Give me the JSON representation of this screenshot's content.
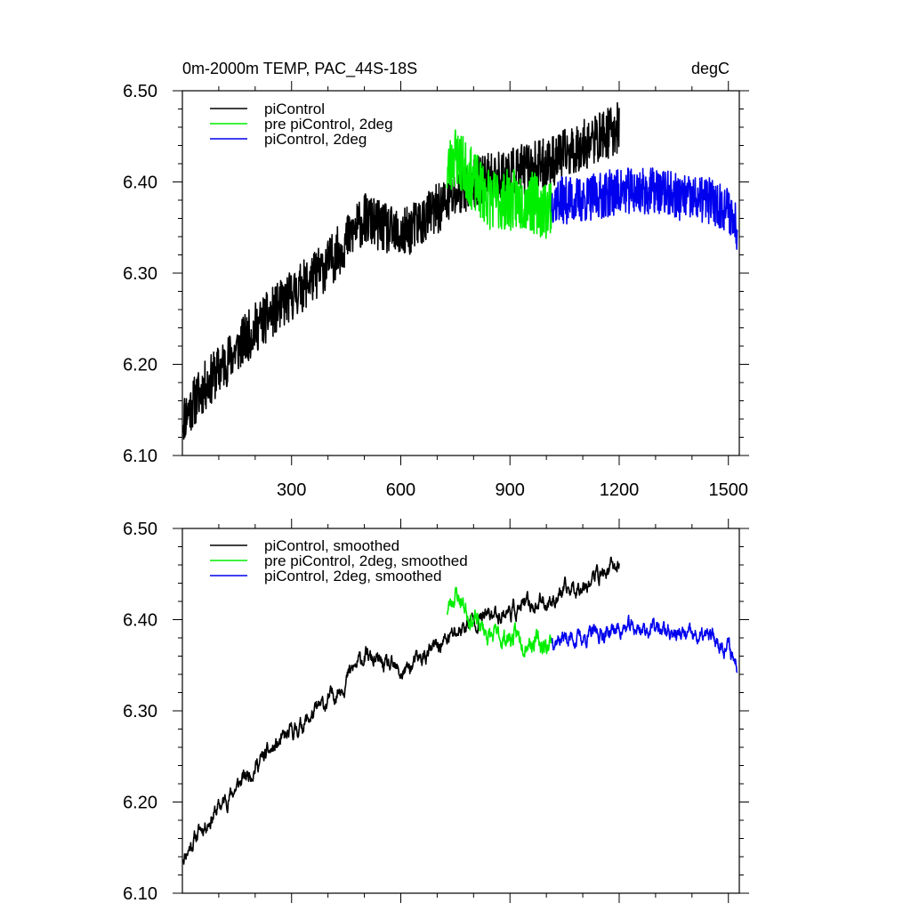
{
  "chart_data": [
    {
      "type": "line",
      "title_left": "0m-2000m TEMP, PAC_44S-18S",
      "title_right": "degC",
      "xlabel": "",
      "ylabel": "",
      "xlim": [
        0,
        1530
      ],
      "ylim": [
        6.1,
        6.5
      ],
      "xticks": [
        300,
        600,
        900,
        1200,
        1500
      ],
      "yticks": [
        6.1,
        6.2,
        6.3,
        6.4,
        6.5
      ],
      "ytick_labels": [
        "6.10",
        "6.20",
        "6.30",
        "6.40",
        "6.50"
      ],
      "legend_position": "top-left",
      "series": [
        {
          "name": "piControl",
          "color": "#000000",
          "x_start": 1,
          "x_step": 1,
          "trend_x": [
            1,
            50,
            200,
            400,
            500,
            600,
            700,
            800,
            900,
            1000,
            1100,
            1200
          ],
          "trend_y": [
            6.14,
            6.17,
            6.24,
            6.31,
            6.36,
            6.34,
            6.37,
            6.4,
            6.41,
            6.42,
            6.44,
            6.46
          ],
          "noise_amplitude": 0.028,
          "seed": 11
        },
        {
          "name": "pre piControl, 2deg",
          "color": "#00ee00",
          "x_start": 727,
          "x_step": 1,
          "trend_x": [
            727,
            750,
            800,
            850,
            900,
            950,
            1000,
            1015
          ],
          "trend_y": [
            6.41,
            6.43,
            6.4,
            6.38,
            6.38,
            6.38,
            6.37,
            6.38
          ],
          "noise_amplitude": 0.034,
          "seed": 23
        },
        {
          "name": "piControl, 2deg",
          "color": "#0000ee",
          "x_start": 1015,
          "x_step": 1,
          "trend_x": [
            1015,
            1100,
            1200,
            1300,
            1400,
            1450,
            1500,
            1525
          ],
          "trend_y": [
            6.38,
            6.38,
            6.39,
            6.39,
            6.38,
            6.38,
            6.37,
            6.35
          ],
          "noise_amplitude": 0.026,
          "seed": 37
        }
      ]
    },
    {
      "type": "line",
      "title_left": "",
      "title_right": "",
      "xlabel": "",
      "ylabel": "",
      "xlim": [
        0,
        1530
      ],
      "ylim": [
        6.1,
        6.5
      ],
      "xticks": [
        300,
        600,
        900,
        1200,
        1500
      ],
      "yticks": [
        6.1,
        6.2,
        6.3,
        6.4,
        6.5
      ],
      "ytick_labels": [
        "6.10",
        "6.20",
        "6.30",
        "6.40",
        "6.50"
      ],
      "legend_position": "top-left",
      "series": [
        {
          "name": "piControl, smoothed",
          "color": "#000000",
          "x_start": 1,
          "x_step": 1,
          "trend_x": [
            1,
            50,
            200,
            400,
            500,
            600,
            700,
            800,
            900,
            1000,
            1100,
            1200
          ],
          "trend_y": [
            6.14,
            6.17,
            6.24,
            6.31,
            6.36,
            6.34,
            6.37,
            6.4,
            6.41,
            6.42,
            6.44,
            6.46
          ],
          "noise_amplitude": 0.01,
          "seed": 11
        },
        {
          "name": "pre piControl, 2deg, smoothed",
          "color": "#00ee00",
          "x_start": 727,
          "x_step": 1,
          "trend_x": [
            727,
            750,
            800,
            850,
            900,
            950,
            1000,
            1015
          ],
          "trend_y": [
            6.41,
            6.43,
            6.4,
            6.38,
            6.38,
            6.38,
            6.37,
            6.38
          ],
          "noise_amplitude": 0.012,
          "seed": 23
        },
        {
          "name": "piControl, 2deg, smoothed",
          "color": "#0000ee",
          "x_start": 1015,
          "x_step": 1,
          "trend_x": [
            1015,
            1100,
            1200,
            1300,
            1400,
            1450,
            1500,
            1525
          ],
          "trend_y": [
            6.38,
            6.38,
            6.39,
            6.39,
            6.38,
            6.38,
            6.37,
            6.35
          ],
          "noise_amplitude": 0.01,
          "seed": 37
        }
      ]
    }
  ]
}
